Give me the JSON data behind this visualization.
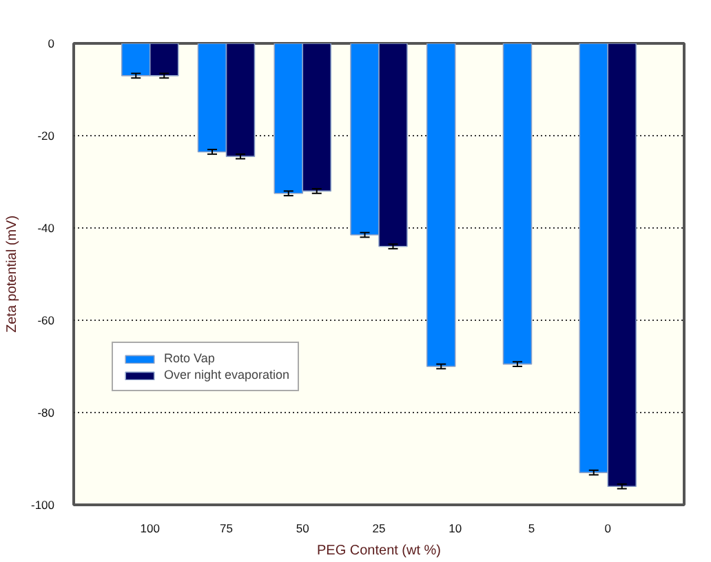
{
  "chart_data": {
    "type": "bar",
    "xlabel": "PEG Content (wt %)",
    "ylabel": "Zeta potential (mV)",
    "categories": [
      "100",
      "75",
      "50",
      "25",
      "10",
      "5",
      "0"
    ],
    "series": [
      {
        "name": "Roto Vap",
        "color": "#0080ff",
        "values": [
          -7,
          -23.5,
          -32.5,
          -41.5,
          -70,
          -69.5,
          -93
        ],
        "errors": [
          0.5,
          0.5,
          0.5,
          0.5,
          0.5,
          0.5,
          0.5
        ]
      },
      {
        "name": "Over night evaporation",
        "color": "#000060",
        "values": [
          -7,
          -24.5,
          -32,
          -44,
          null,
          null,
          -96
        ],
        "errors": [
          0.5,
          0.5,
          0.5,
          0.5,
          null,
          null,
          0.5
        ]
      }
    ],
    "ylim": [
      -100,
      0
    ],
    "yticks": [
      -100,
      -80,
      -60,
      -40,
      -20,
      0
    ],
    "grid": "y",
    "legend": "bottom left"
  }
}
